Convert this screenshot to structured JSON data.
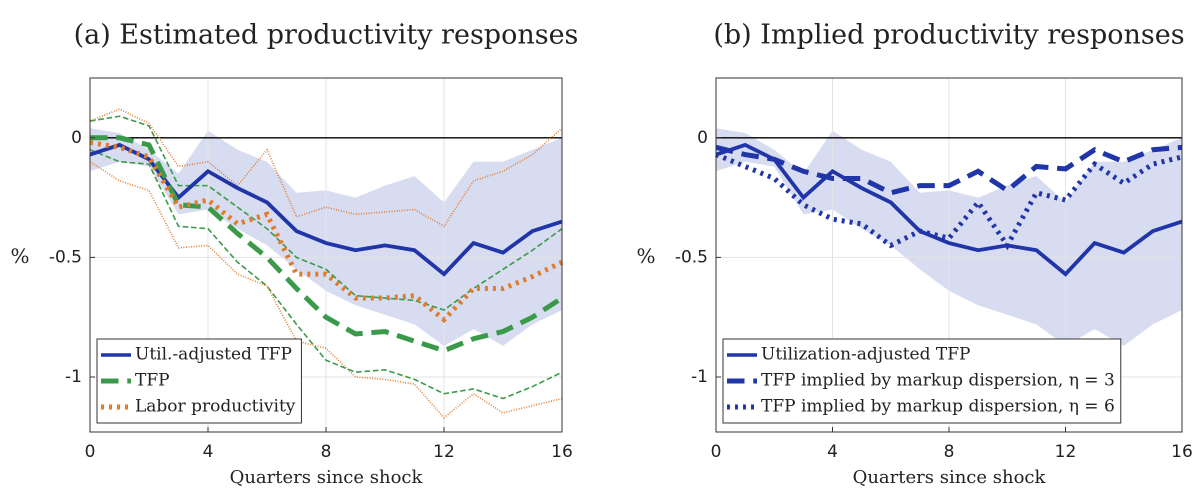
{
  "chart_data": [
    {
      "type": "line",
      "title": "(a) Estimated productivity responses",
      "xlabel": "Quarters since shock",
      "ylabel": "%",
      "x": [
        0,
        1,
        2,
        3,
        4,
        5,
        6,
        7,
        8,
        9,
        10,
        11,
        12,
        13,
        14,
        15,
        16
      ],
      "xlim": [
        0,
        16
      ],
      "xticks": [
        0,
        4,
        8,
        12,
        16
      ],
      "ylim": [
        -1.23,
        0.25
      ],
      "yticks": [
        0,
        -0.5,
        -1
      ],
      "grid": true,
      "hline": 0,
      "legend": "lower left",
      "series": [
        {
          "name": "Util.-adjusted TFP",
          "color": "#1f35a8",
          "style": "solid",
          "values": [
            -0.07,
            -0.03,
            -0.09,
            -0.25,
            -0.14,
            -0.21,
            -0.27,
            -0.39,
            -0.44,
            -0.47,
            -0.45,
            -0.47,
            -0.57,
            -0.44,
            -0.48,
            -0.39,
            -0.35
          ],
          "band": {
            "kind": "shade",
            "color": "#d8dcf0",
            "upper": [
              0.04,
              0.02,
              -0.05,
              -0.15,
              0.03,
              -0.05,
              -0.1,
              -0.23,
              -0.22,
              -0.25,
              -0.2,
              -0.16,
              -0.27,
              -0.1,
              -0.1,
              -0.05,
              0.0
            ],
            "lower": [
              -0.14,
              -0.1,
              -0.12,
              -0.32,
              -0.3,
              -0.38,
              -0.45,
              -0.55,
              -0.64,
              -0.7,
              -0.74,
              -0.78,
              -0.87,
              -0.8,
              -0.87,
              -0.78,
              -0.72
            ]
          }
        },
        {
          "name": "TFP",
          "color": "#3a9a4a",
          "style": "dashed",
          "values": [
            0.0,
            0.0,
            -0.03,
            -0.28,
            -0.29,
            -0.4,
            -0.5,
            -0.63,
            -0.75,
            -0.82,
            -0.81,
            -0.85,
            -0.89,
            -0.84,
            -0.81,
            -0.75,
            -0.67
          ],
          "band": {
            "kind": "line",
            "upper": [
              0.07,
              0.09,
              0.05,
              -0.2,
              -0.2,
              -0.29,
              -0.38,
              -0.5,
              -0.55,
              -0.66,
              -0.67,
              -0.68,
              -0.72,
              -0.63,
              -0.55,
              -0.47,
              -0.38
            ],
            "lower": [
              -0.05,
              -0.1,
              -0.11,
              -0.37,
              -0.38,
              -0.52,
              -0.62,
              -0.78,
              -0.93,
              -0.98,
              -0.97,
              -1.01,
              -1.07,
              -1.05,
              -1.09,
              -1.04,
              -0.98
            ]
          }
        },
        {
          "name": "Labor productivity",
          "color": "#e07b2a",
          "style": "dotted",
          "values": [
            -0.02,
            -0.04,
            -0.08,
            -0.29,
            -0.26,
            -0.36,
            -0.32,
            -0.57,
            -0.57,
            -0.67,
            -0.67,
            -0.66,
            -0.76,
            -0.63,
            -0.63,
            -0.58,
            -0.52
          ],
          "band": {
            "kind": "line",
            "upper": [
              0.07,
              0.12,
              0.06,
              -0.12,
              -0.1,
              -0.2,
              -0.05,
              -0.33,
              -0.29,
              -0.32,
              -0.31,
              -0.3,
              -0.37,
              -0.18,
              -0.14,
              -0.07,
              0.04
            ],
            "lower": [
              -0.1,
              -0.18,
              -0.22,
              -0.46,
              -0.45,
              -0.57,
              -0.62,
              -0.85,
              -0.88,
              -1.0,
              -1.01,
              -1.03,
              -1.17,
              -1.07,
              -1.15,
              -1.12,
              -1.09
            ]
          }
        }
      ]
    },
    {
      "type": "line",
      "title": "(b) Implied productivity responses",
      "xlabel": "Quarters since shock",
      "ylabel": "%",
      "x": [
        0,
        1,
        2,
        3,
        4,
        5,
        6,
        7,
        8,
        9,
        10,
        11,
        12,
        13,
        14,
        15,
        16
      ],
      "xlim": [
        0,
        16
      ],
      "xticks": [
        0,
        4,
        8,
        12,
        16
      ],
      "ylim": [
        -1.23,
        0.25
      ],
      "yticks": [
        0,
        -0.5,
        -1
      ],
      "grid": true,
      "hline": 0,
      "legend": "lower left",
      "series": [
        {
          "name": "Utilization-adjusted TFP",
          "color": "#1f35a8",
          "style": "solid",
          "values": [
            -0.07,
            -0.03,
            -0.09,
            -0.25,
            -0.14,
            -0.21,
            -0.27,
            -0.39,
            -0.44,
            -0.47,
            -0.45,
            -0.47,
            -0.57,
            -0.44,
            -0.48,
            -0.39,
            -0.35
          ],
          "band": {
            "kind": "shade",
            "color": "#d8dcf0",
            "upper": [
              0.04,
              0.02,
              -0.05,
              -0.15,
              0.03,
              -0.05,
              -0.1,
              -0.23,
              -0.22,
              -0.25,
              -0.2,
              -0.16,
              -0.27,
              -0.1,
              -0.1,
              -0.05,
              0.0
            ],
            "lower": [
              -0.14,
              -0.1,
              -0.12,
              -0.32,
              -0.3,
              -0.38,
              -0.45,
              -0.55,
              -0.64,
              -0.7,
              -0.74,
              -0.78,
              -0.87,
              -0.8,
              -0.87,
              -0.78,
              -0.72
            ]
          }
        },
        {
          "name": "TFP implied by markup dispersion, η = 3",
          "color": "#1f35a8",
          "style": "dashed",
          "values": [
            -0.04,
            -0.07,
            -0.09,
            -0.14,
            -0.17,
            -0.17,
            -0.23,
            -0.2,
            -0.2,
            -0.14,
            -0.22,
            -0.12,
            -0.13,
            -0.05,
            -0.1,
            -0.05,
            -0.04
          ]
        },
        {
          "name": "TFP implied by markup dispersion, η = 6",
          "color": "#1f35a8",
          "style": "dotted",
          "values": [
            -0.07,
            -0.12,
            -0.17,
            -0.28,
            -0.34,
            -0.36,
            -0.45,
            -0.39,
            -0.42,
            -0.27,
            -0.45,
            -0.23,
            -0.26,
            -0.11,
            -0.19,
            -0.11,
            -0.08
          ]
        }
      ]
    }
  ]
}
